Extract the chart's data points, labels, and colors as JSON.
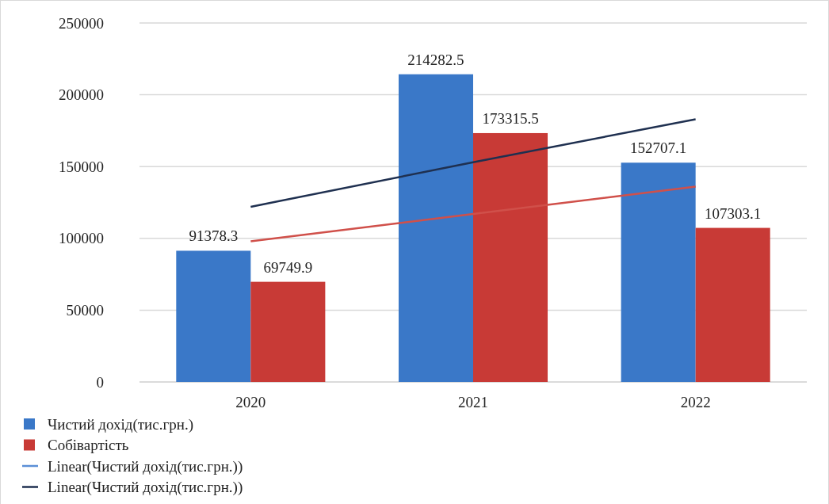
{
  "chart_data": {
    "type": "bar",
    "categories": [
      "2020",
      "2021",
      "2022"
    ],
    "series": [
      {
        "name": "Чистий дохід(тис.грн.)",
        "color": "#3a78c8",
        "values": [
          91378.3,
          214282.5,
          152707.1
        ],
        "value_labels": [
          "91378.3",
          "214282.5",
          "152707.1"
        ]
      },
      {
        "name": "Собівартість",
        "color": "#c83a36",
        "values": [
          69749.9,
          173315.5,
          107303.1
        ],
        "value_labels": [
          "69749.9",
          "173315.5",
          "107303.1"
        ]
      },
      {
        "name": "Linear(Чистий дохід(тис.грн.))",
        "type": "line",
        "color": "#5b8fd6",
        "values": [
          null,
          null,
          null
        ]
      },
      {
        "name": "Linear(Чистий дохід(тис.грн.))",
        "type": "line",
        "color": "#1f3050",
        "values": [
          122000,
          153000,
          183000
        ]
      },
      {
        "type": "line",
        "color": "#d0504a",
        "values": [
          98000,
          117000,
          136000
        ]
      }
    ],
    "ylim": [
      0,
      250000
    ],
    "yticks": [
      0,
      50000,
      100000,
      150000,
      200000,
      250000
    ],
    "grid": "y",
    "legend": "bottom left",
    "marker": "none",
    "line_style": "solid"
  }
}
